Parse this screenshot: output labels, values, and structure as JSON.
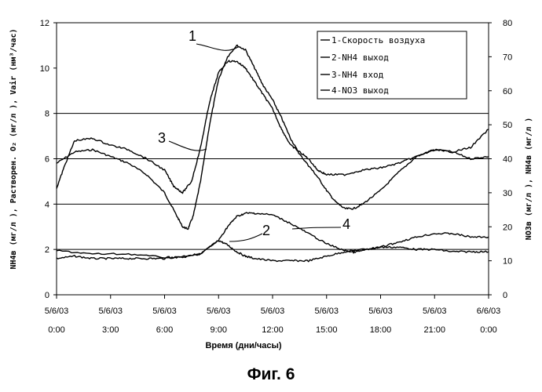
{
  "figure_caption": "Фиг. 6",
  "chart_data": {
    "type": "line",
    "xlabel": "Время (дни/часы)",
    "ylabel_left": "NH4в (мг/л ), Растворен. O₂ (мг/л ), Vair (нм³/час)",
    "ylabel_right": "NO3в (мг/л ), NH4в (мг/л )",
    "ylim_left": [
      0,
      12
    ],
    "ylim_right": [
      0,
      80
    ],
    "yticks_left": [
      "0",
      "2",
      "4",
      "6",
      "8",
      "10",
      "12"
    ],
    "yticks_right": [
      "0",
      "10",
      "20",
      "30",
      "40",
      "50",
      "60",
      "70",
      "80"
    ],
    "xlim_hours": [
      0,
      24
    ],
    "xticks": [
      {
        "hour": 0,
        "date": "5/6/03",
        "time": "0:00"
      },
      {
        "hour": 3,
        "date": "5/6/03",
        "time": "3:00"
      },
      {
        "hour": 6,
        "date": "5/6/03",
        "time": "6:00"
      },
      {
        "hour": 9,
        "date": "5/6/03",
        "time": "9:00"
      },
      {
        "hour": 12,
        "date": "5/6/03",
        "time": "12:00"
      },
      {
        "hour": 15,
        "date": "5/6/03",
        "time": "15:00"
      },
      {
        "hour": 18,
        "date": "5/6/03",
        "time": "18:00"
      },
      {
        "hour": 21,
        "date": "5/6/03",
        "time": "21:00"
      },
      {
        "hour": 24,
        "date": "6/6/03",
        "time": "0:00"
      }
    ],
    "gridlines_left": [
      2,
      4,
      6,
      8
    ],
    "legend_position": "top-right",
    "series": [
      {
        "name": "1-Скорость воздуха",
        "callout": "1",
        "axis": "left",
        "x": [
          0,
          1,
          2,
          3,
          4,
          5,
          6,
          6.6,
          7,
          7.3,
          7.6,
          8,
          8.5,
          9,
          9.5,
          10,
          10.5,
          11,
          11.5,
          12,
          12.5,
          13,
          13.5,
          14,
          14.5,
          15,
          15.5,
          16,
          16.5,
          17,
          18,
          19,
          20,
          21,
          22,
          23,
          24
        ],
        "y": [
          5.8,
          6.3,
          6.4,
          6.1,
          5.8,
          5.3,
          4.5,
          3.6,
          3.0,
          2.9,
          3.5,
          5.0,
          7.5,
          9.5,
          10.5,
          11.0,
          10.8,
          10.0,
          9.2,
          8.6,
          7.8,
          6.9,
          6.2,
          5.7,
          5.2,
          4.6,
          4.1,
          3.8,
          3.8,
          4.0,
          4.6,
          5.4,
          6.1,
          6.4,
          6.3,
          6.0,
          6.1
        ]
      },
      {
        "name": "2-NH4 выход",
        "callout": "2",
        "axis": "left",
        "x": [
          0,
          1,
          2,
          3,
          4,
          5,
          6,
          7,
          8,
          8.5,
          9,
          9.5,
          10,
          10.5,
          11,
          12,
          13,
          14,
          15,
          16,
          17,
          18,
          19,
          20,
          21,
          22,
          23,
          24
        ],
        "y": [
          1.6,
          1.7,
          1.6,
          1.6,
          1.6,
          1.6,
          1.6,
          1.7,
          1.8,
          2.1,
          2.4,
          2.2,
          1.9,
          1.7,
          1.6,
          1.5,
          1.5,
          1.5,
          1.7,
          1.9,
          2.0,
          2.1,
          2.1,
          2.0,
          2.0,
          1.9,
          1.9,
          1.9
        ]
      },
      {
        "name": "3-NH4 вход",
        "callout": "3",
        "axis": "left",
        "x": [
          0,
          0.5,
          1,
          2,
          3,
          4,
          5,
          6,
          6.5,
          7,
          7.5,
          8,
          8.5,
          9,
          9.5,
          10,
          10.5,
          11,
          11.5,
          12,
          12.5,
          13,
          13.5,
          14,
          14.5,
          15,
          16,
          17,
          18,
          19,
          20,
          21,
          22,
          23,
          24
        ],
        "y": [
          4.7,
          5.8,
          6.8,
          6.9,
          6.6,
          6.4,
          6.0,
          5.5,
          4.8,
          4.5,
          5.0,
          6.5,
          8.5,
          9.8,
          10.3,
          10.3,
          10.0,
          9.4,
          8.8,
          8.2,
          7.3,
          6.6,
          6.3,
          6.0,
          5.5,
          5.3,
          5.3,
          5.5,
          5.6,
          5.8,
          6.1,
          6.4,
          6.3,
          6.5,
          7.3
        ]
      },
      {
        "name": "4-NO3 выход",
        "callout": "4",
        "axis": "right",
        "x": [
          0,
          2,
          4,
          6,
          7,
          8,
          9,
          9.5,
          10,
          10.5,
          11,
          12,
          13,
          14,
          15,
          16,
          16.5,
          17,
          18,
          19,
          20,
          21,
          22,
          23,
          24
        ],
        "y": [
          13,
          12,
          12,
          11,
          11,
          12,
          16,
          20,
          23,
          24,
          24,
          23.5,
          21,
          18,
          15,
          13,
          12.5,
          13,
          14,
          15.5,
          17,
          18,
          18,
          17,
          17
        ]
      }
    ]
  }
}
